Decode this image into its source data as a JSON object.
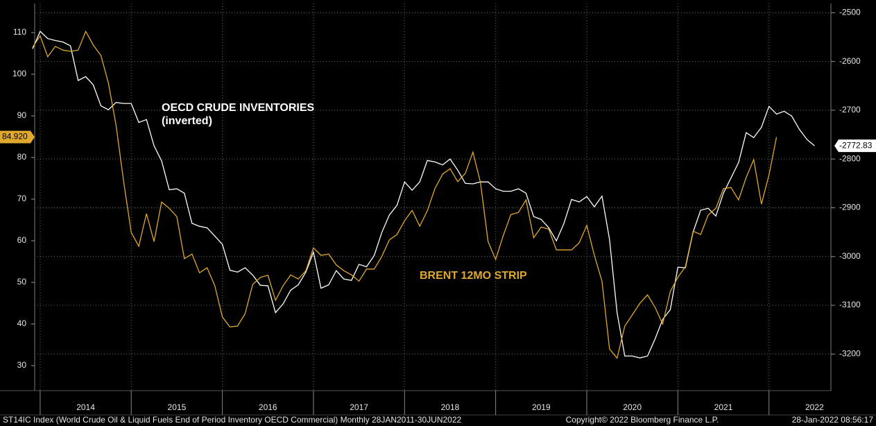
{
  "chart_data": {
    "type": "line",
    "xlim": [
      2013.94,
      2022.68
    ],
    "xticks": [
      2014,
      2015,
      2016,
      2017,
      2018,
      2019,
      2020,
      2021,
      2022
    ],
    "ylim": [
      24,
      117
    ],
    "yticks": [
      30,
      40,
      50,
      60,
      70,
      80,
      90,
      100,
      110
    ],
    "y2lim": [
      -3275,
      -2481
    ],
    "y2ticks": [
      -3200,
      -3100,
      -3000,
      -2900,
      -2800,
      -2700,
      -2600,
      -2500
    ],
    "grid": true,
    "series": [
      {
        "label": [
          "OECD CRUDE INVENTORIES",
          "(inverted)"
        ],
        "color": "#ffffff",
        "axis": "y2",
        "last_label": "-2772.83",
        "x": [
          2013.917,
          2014,
          2014.083,
          2014.167,
          2014.25,
          2014.333,
          2014.417,
          2014.5,
          2014.583,
          2014.667,
          2014.75,
          2014.833,
          2014.917,
          2015,
          2015.083,
          2015.167,
          2015.25,
          2015.333,
          2015.417,
          2015.5,
          2015.583,
          2015.667,
          2015.75,
          2015.833,
          2015.917,
          2016,
          2016.083,
          2016.167,
          2016.25,
          2016.333,
          2016.417,
          2016.5,
          2016.583,
          2016.667,
          2016.75,
          2016.833,
          2016.917,
          2017,
          2017.083,
          2017.167,
          2017.25,
          2017.333,
          2017.417,
          2017.5,
          2017.583,
          2017.667,
          2017.75,
          2017.833,
          2017.917,
          2018,
          2018.083,
          2018.167,
          2018.25,
          2018.333,
          2018.417,
          2018.5,
          2018.583,
          2018.667,
          2018.75,
          2018.833,
          2018.917,
          2019,
          2019.083,
          2019.167,
          2019.25,
          2019.333,
          2019.417,
          2019.5,
          2019.583,
          2019.667,
          2019.75,
          2019.833,
          2019.917,
          2020,
          2020.083,
          2020.167,
          2020.25,
          2020.333,
          2020.417,
          2020.5,
          2020.583,
          2020.667,
          2020.75,
          2020.833,
          2020.917,
          2021,
          2021.083,
          2021.167,
          2021.25,
          2021.333,
          2021.417,
          2021.5,
          2021.583,
          2021.667,
          2021.75,
          2021.833,
          2021.917,
          2022,
          2022.083,
          2022.167,
          2022.25,
          2022.333,
          2022.417,
          2022.5
        ],
        "values": [
          -2574,
          -2538,
          -2553,
          -2557,
          -2560,
          -2568,
          -2639,
          -2631,
          -2648,
          -2691,
          -2699,
          -2684,
          -2686,
          -2686,
          -2725,
          -2719,
          -2773,
          -2804,
          -2863,
          -2861,
          -2870,
          -2932,
          -2938,
          -2941,
          -2958,
          -2975,
          -3028,
          -3032,
          -3023,
          -3038,
          -3059,
          -3060,
          -3115,
          -3097,
          -3069,
          -3058,
          -3032,
          -2991,
          -3065,
          -3058,
          -3029,
          -3046,
          -3049,
          -3016,
          -3021,
          -2998,
          -2951,
          -2915,
          -2895,
          -2847,
          -2864,
          -2847,
          -2803,
          -2806,
          -2812,
          -2800,
          -2823,
          -2850,
          -2851,
          -2847,
          -2847,
          -2861,
          -2866,
          -2866,
          -2861,
          -2870,
          -2918,
          -2924,
          -2941,
          -2968,
          -2932,
          -2883,
          -2888,
          -2877,
          -2898,
          -2876,
          -2965,
          -3115,
          -3204,
          -3204,
          -3208,
          -3204,
          -3169,
          -3129,
          -3109,
          -3022,
          -3023,
          -2950,
          -2905,
          -2901,
          -2917,
          -2870,
          -2839,
          -2807,
          -2746,
          -2756,
          -2735,
          -2692,
          -2708,
          -2702,
          -2712,
          -2739,
          -2760,
          -2772.83
        ]
      },
      {
        "label": [
          "BRENT 12MO STRIP"
        ],
        "color": "#e0a92e",
        "axis": "y",
        "last_label": "84.920",
        "x": [
          2013.917,
          2014,
          2014.083,
          2014.167,
          2014.25,
          2014.333,
          2014.417,
          2014.5,
          2014.583,
          2014.667,
          2014.75,
          2014.833,
          2014.917,
          2015,
          2015.083,
          2015.167,
          2015.25,
          2015.333,
          2015.417,
          2015.5,
          2015.583,
          2015.667,
          2015.75,
          2015.833,
          2015.917,
          2016,
          2016.083,
          2016.167,
          2016.25,
          2016.333,
          2016.417,
          2016.5,
          2016.583,
          2016.667,
          2016.75,
          2016.833,
          2016.917,
          2017,
          2017.083,
          2017.167,
          2017.25,
          2017.333,
          2017.417,
          2017.5,
          2017.583,
          2017.667,
          2017.75,
          2017.833,
          2017.917,
          2018,
          2018.083,
          2018.167,
          2018.25,
          2018.333,
          2018.417,
          2018.5,
          2018.583,
          2018.667,
          2018.75,
          2018.833,
          2018.917,
          2019,
          2019.083,
          2019.167,
          2019.25,
          2019.333,
          2019.417,
          2019.5,
          2019.583,
          2019.667,
          2019.75,
          2019.833,
          2019.917,
          2020,
          2020.083,
          2020.167,
          2020.25,
          2020.333,
          2020.417,
          2020.5,
          2020.583,
          2020.667,
          2020.75,
          2020.833,
          2020.917,
          2021,
          2021.083,
          2021.167,
          2021.25,
          2021.333,
          2021.417,
          2021.5,
          2021.583,
          2021.667,
          2021.75,
          2021.833,
          2021.917,
          2022,
          2022.083
        ],
        "values": [
          106.5,
          109.2,
          104.2,
          106.7,
          105.8,
          105.5,
          105.8,
          110.3,
          107,
          104.5,
          97.8,
          87.8,
          74.2,
          62,
          58.7,
          66.5,
          59.8,
          69.3,
          67.8,
          65.8,
          55.7,
          56.8,
          52.3,
          53.5,
          49.2,
          41.7,
          39.3,
          39.5,
          42.5,
          49.5,
          51.2,
          51.7,
          45.7,
          49.2,
          51.8,
          50.8,
          52.8,
          58.3,
          56.5,
          56.8,
          54.2,
          52.8,
          51.8,
          50.3,
          53.2,
          53.2,
          56.2,
          60.2,
          61.5,
          64.8,
          67.3,
          63.5,
          67.2,
          72.5,
          76,
          77.3,
          74.2,
          76.2,
          81.3,
          74,
          59.8,
          55.5,
          61.2,
          66.3,
          66.8,
          69.8,
          60.7,
          63.3,
          62.8,
          57.8,
          57.8,
          57.8,
          59.5,
          63.7,
          56.5,
          50.3,
          34,
          31.8,
          39.5,
          42.2,
          45,
          47,
          44,
          40,
          47.8,
          51.2,
          53.8,
          62.3,
          61.5,
          66.2,
          67.8,
          72.5,
          72.8,
          69.8,
          75.2,
          79.5,
          68.8,
          75.8,
          84.92
        ]
      }
    ],
    "source": "ST14IC Index (World Crude Oil & Liquid Fuels End of Period Inventory OECD Commercial)  Monthly 28JAN2011-30JUN2022",
    "copyright": "Copyright© 2022 Bloomberg Finance L.P.",
    "timestamp": "28-Jan-2022 08:56:17"
  }
}
